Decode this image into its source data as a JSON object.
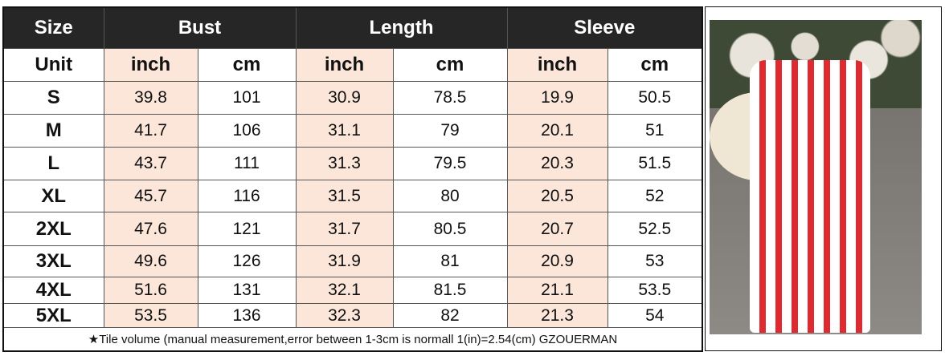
{
  "header": {
    "size": "Size",
    "bust": "Bust",
    "length": "Length",
    "sleeve": "Sleeve"
  },
  "units": {
    "label": "Unit",
    "inch": "inch",
    "cm": "cm"
  },
  "rows": [
    {
      "size": "S",
      "bust_in": "39.8",
      "bust_cm": "101",
      "len_in": "30.9",
      "len_cm": "78.5",
      "sl_in": "19.9",
      "sl_cm": "50.5"
    },
    {
      "size": "M",
      "bust_in": "41.7",
      "bust_cm": "106",
      "len_in": "31.1",
      "len_cm": "79",
      "sl_in": "20.1",
      "sl_cm": "51"
    },
    {
      "size": "L",
      "bust_in": "43.7",
      "bust_cm": "111",
      "len_in": "31.3",
      "len_cm": "79.5",
      "sl_in": "20.3",
      "sl_cm": "51.5"
    },
    {
      "size": "XL",
      "bust_in": "45.7",
      "bust_cm": "116",
      "len_in": "31.5",
      "len_cm": "80",
      "sl_in": "20.5",
      "sl_cm": "52"
    },
    {
      "size": "2XL",
      "bust_in": "47.6",
      "bust_cm": "121",
      "len_in": "31.7",
      "len_cm": "80.5",
      "sl_in": "20.7",
      "sl_cm": "52.5"
    },
    {
      "size": "3XL",
      "bust_in": "49.6",
      "bust_cm": "126",
      "len_in": "31.9",
      "len_cm": "81",
      "sl_in": "20.9",
      "sl_cm": "53"
    },
    {
      "size": "4XL",
      "bust_in": "51.6",
      "bust_cm": "131",
      "len_in": "32.1",
      "len_cm": "81.5",
      "sl_in": "21.1",
      "sl_cm": "53.5"
    },
    {
      "size": "5XL",
      "bust_in": "53.5",
      "bust_cm": "136",
      "len_in": "32.3",
      "len_cm": "82",
      "sl_in": "21.3",
      "sl_cm": "54"
    }
  ],
  "footer": "★Tile volume (manual measurement,error between 1-3cm is normall      1(in)=2.54(cm)  GZOUERMAN",
  "colors": {
    "header_bg": "#262626",
    "inch_bg": "#fbe6d9",
    "stripe": "#e02a32"
  }
}
